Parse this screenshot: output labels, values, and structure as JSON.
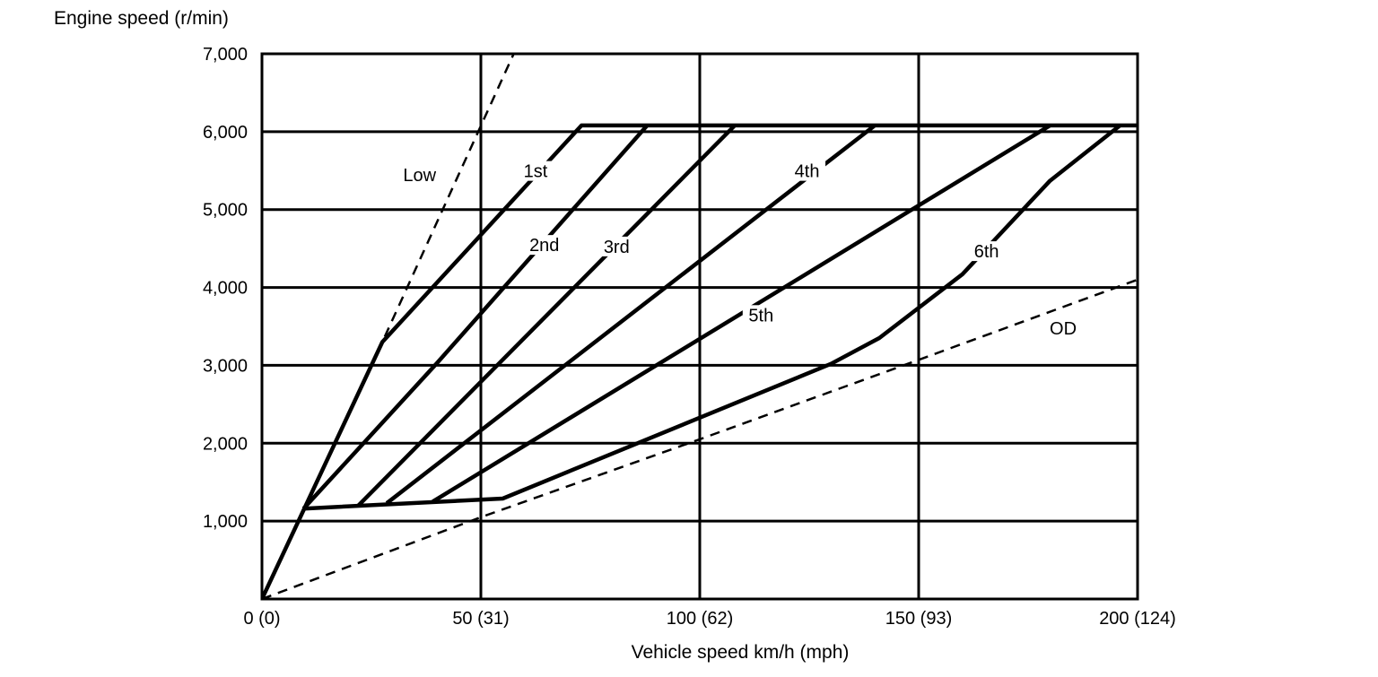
{
  "chart_data": {
    "type": "line",
    "title": "",
    "ylabel": "Engine speed (r/min)",
    "xlabel": "Vehicle speed  km/h (mph)",
    "xlim": [
      0,
      200
    ],
    "ylim": [
      0,
      7000
    ],
    "grid": true,
    "x_ticks": [
      0,
      50,
      100,
      150,
      200
    ],
    "x_tick_labels": [
      "0 (0)",
      "50 (31)",
      "100 (62)",
      "150 (93)",
      "200 (124)"
    ],
    "y_ticks": [
      1000,
      2000,
      3000,
      4000,
      5000,
      6000,
      7000
    ],
    "y_tick_labels": [
      "1,000",
      "2,000",
      "3,000",
      "4,000",
      "5,000",
      "6,000",
      "7,000"
    ],
    "series": [
      {
        "name": "Low",
        "style": "dashed",
        "points": [
          [
            0,
            0
          ],
          [
            27.5,
            3300
          ],
          [
            57.5,
            7000
          ]
        ]
      },
      {
        "name": "OD",
        "style": "dashed",
        "points": [
          [
            0,
            0
          ],
          [
            50,
            1050
          ],
          [
            100,
            2050
          ],
          [
            150,
            3070
          ],
          [
            200,
            4100
          ]
        ]
      },
      {
        "name": "1st",
        "style": "solid",
        "points": [
          [
            0,
            0
          ],
          [
            27.5,
            3300
          ],
          [
            73,
            6080
          ],
          [
            200,
            6080
          ]
        ]
      },
      {
        "name": "2nd",
        "style": "solid",
        "points": [
          [
            9.5,
            1160
          ],
          [
            40,
            3030
          ],
          [
            88,
            6080
          ]
        ]
      },
      {
        "name": "3rd",
        "style": "solid",
        "points": [
          [
            22,
            1200
          ],
          [
            108,
            6080
          ]
        ]
      },
      {
        "name": "4th",
        "style": "solid",
        "points": [
          [
            28.5,
            1230
          ],
          [
            140,
            6080
          ]
        ]
      },
      {
        "name": "5th",
        "style": "solid",
        "points": [
          [
            39,
            1250
          ],
          [
            180,
            6080
          ]
        ]
      },
      {
        "name": "6th",
        "style": "solid",
        "points": [
          [
            9.5,
            1160
          ],
          [
            55,
            1290
          ],
          [
            130,
            3020
          ],
          [
            141,
            3350
          ],
          [
            160,
            4170
          ],
          [
            180,
            5370
          ],
          [
            196,
            6080
          ]
        ]
      }
    ],
    "colors": {
      "line": "#000000",
      "background": "#ffffff"
    }
  }
}
